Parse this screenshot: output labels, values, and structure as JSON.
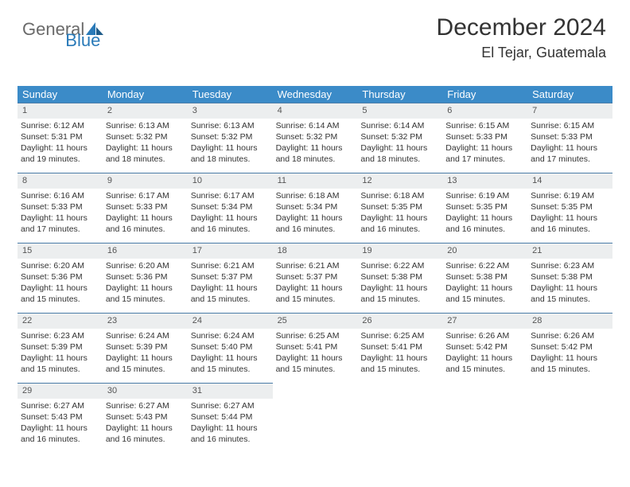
{
  "logo": {
    "part1": "General",
    "part2": "Blue"
  },
  "header": {
    "title": "December 2024",
    "location": "El Tejar, Guatemala"
  },
  "colors": {
    "dow_bg": "#3b8bc8",
    "dow_fg": "#ffffff",
    "cell_border": "#4a7ca8",
    "daynum_bg": "#eceeef",
    "text": "#333333",
    "logo_gray": "#6a6a6a",
    "logo_blue": "#2a7ab8"
  },
  "dow": [
    "Sunday",
    "Monday",
    "Tuesday",
    "Wednesday",
    "Thursday",
    "Friday",
    "Saturday"
  ],
  "days": [
    {
      "n": "1",
      "sr": "Sunrise: 6:12 AM",
      "ss": "Sunset: 5:31 PM",
      "d1": "Daylight: 11 hours",
      "d2": "and 19 minutes."
    },
    {
      "n": "2",
      "sr": "Sunrise: 6:13 AM",
      "ss": "Sunset: 5:32 PM",
      "d1": "Daylight: 11 hours",
      "d2": "and 18 minutes."
    },
    {
      "n": "3",
      "sr": "Sunrise: 6:13 AM",
      "ss": "Sunset: 5:32 PM",
      "d1": "Daylight: 11 hours",
      "d2": "and 18 minutes."
    },
    {
      "n": "4",
      "sr": "Sunrise: 6:14 AM",
      "ss": "Sunset: 5:32 PM",
      "d1": "Daylight: 11 hours",
      "d2": "and 18 minutes."
    },
    {
      "n": "5",
      "sr": "Sunrise: 6:14 AM",
      "ss": "Sunset: 5:32 PM",
      "d1": "Daylight: 11 hours",
      "d2": "and 18 minutes."
    },
    {
      "n": "6",
      "sr": "Sunrise: 6:15 AM",
      "ss": "Sunset: 5:33 PM",
      "d1": "Daylight: 11 hours",
      "d2": "and 17 minutes."
    },
    {
      "n": "7",
      "sr": "Sunrise: 6:15 AM",
      "ss": "Sunset: 5:33 PM",
      "d1": "Daylight: 11 hours",
      "d2": "and 17 minutes."
    },
    {
      "n": "8",
      "sr": "Sunrise: 6:16 AM",
      "ss": "Sunset: 5:33 PM",
      "d1": "Daylight: 11 hours",
      "d2": "and 17 minutes."
    },
    {
      "n": "9",
      "sr": "Sunrise: 6:17 AM",
      "ss": "Sunset: 5:33 PM",
      "d1": "Daylight: 11 hours",
      "d2": "and 16 minutes."
    },
    {
      "n": "10",
      "sr": "Sunrise: 6:17 AM",
      "ss": "Sunset: 5:34 PM",
      "d1": "Daylight: 11 hours",
      "d2": "and 16 minutes."
    },
    {
      "n": "11",
      "sr": "Sunrise: 6:18 AM",
      "ss": "Sunset: 5:34 PM",
      "d1": "Daylight: 11 hours",
      "d2": "and 16 minutes."
    },
    {
      "n": "12",
      "sr": "Sunrise: 6:18 AM",
      "ss": "Sunset: 5:35 PM",
      "d1": "Daylight: 11 hours",
      "d2": "and 16 minutes."
    },
    {
      "n": "13",
      "sr": "Sunrise: 6:19 AM",
      "ss": "Sunset: 5:35 PM",
      "d1": "Daylight: 11 hours",
      "d2": "and 16 minutes."
    },
    {
      "n": "14",
      "sr": "Sunrise: 6:19 AM",
      "ss": "Sunset: 5:35 PM",
      "d1": "Daylight: 11 hours",
      "d2": "and 16 minutes."
    },
    {
      "n": "15",
      "sr": "Sunrise: 6:20 AM",
      "ss": "Sunset: 5:36 PM",
      "d1": "Daylight: 11 hours",
      "d2": "and 15 minutes."
    },
    {
      "n": "16",
      "sr": "Sunrise: 6:20 AM",
      "ss": "Sunset: 5:36 PM",
      "d1": "Daylight: 11 hours",
      "d2": "and 15 minutes."
    },
    {
      "n": "17",
      "sr": "Sunrise: 6:21 AM",
      "ss": "Sunset: 5:37 PM",
      "d1": "Daylight: 11 hours",
      "d2": "and 15 minutes."
    },
    {
      "n": "18",
      "sr": "Sunrise: 6:21 AM",
      "ss": "Sunset: 5:37 PM",
      "d1": "Daylight: 11 hours",
      "d2": "and 15 minutes."
    },
    {
      "n": "19",
      "sr": "Sunrise: 6:22 AM",
      "ss": "Sunset: 5:38 PM",
      "d1": "Daylight: 11 hours",
      "d2": "and 15 minutes."
    },
    {
      "n": "20",
      "sr": "Sunrise: 6:22 AM",
      "ss": "Sunset: 5:38 PM",
      "d1": "Daylight: 11 hours",
      "d2": "and 15 minutes."
    },
    {
      "n": "21",
      "sr": "Sunrise: 6:23 AM",
      "ss": "Sunset: 5:38 PM",
      "d1": "Daylight: 11 hours",
      "d2": "and 15 minutes."
    },
    {
      "n": "22",
      "sr": "Sunrise: 6:23 AM",
      "ss": "Sunset: 5:39 PM",
      "d1": "Daylight: 11 hours",
      "d2": "and 15 minutes."
    },
    {
      "n": "23",
      "sr": "Sunrise: 6:24 AM",
      "ss": "Sunset: 5:39 PM",
      "d1": "Daylight: 11 hours",
      "d2": "and 15 minutes."
    },
    {
      "n": "24",
      "sr": "Sunrise: 6:24 AM",
      "ss": "Sunset: 5:40 PM",
      "d1": "Daylight: 11 hours",
      "d2": "and 15 minutes."
    },
    {
      "n": "25",
      "sr": "Sunrise: 6:25 AM",
      "ss": "Sunset: 5:41 PM",
      "d1": "Daylight: 11 hours",
      "d2": "and 15 minutes."
    },
    {
      "n": "26",
      "sr": "Sunrise: 6:25 AM",
      "ss": "Sunset: 5:41 PM",
      "d1": "Daylight: 11 hours",
      "d2": "and 15 minutes."
    },
    {
      "n": "27",
      "sr": "Sunrise: 6:26 AM",
      "ss": "Sunset: 5:42 PM",
      "d1": "Daylight: 11 hours",
      "d2": "and 15 minutes."
    },
    {
      "n": "28",
      "sr": "Sunrise: 6:26 AM",
      "ss": "Sunset: 5:42 PM",
      "d1": "Daylight: 11 hours",
      "d2": "and 15 minutes."
    },
    {
      "n": "29",
      "sr": "Sunrise: 6:27 AM",
      "ss": "Sunset: 5:43 PM",
      "d1": "Daylight: 11 hours",
      "d2": "and 16 minutes."
    },
    {
      "n": "30",
      "sr": "Sunrise: 6:27 AM",
      "ss": "Sunset: 5:43 PM",
      "d1": "Daylight: 11 hours",
      "d2": "and 16 minutes."
    },
    {
      "n": "31",
      "sr": "Sunrise: 6:27 AM",
      "ss": "Sunset: 5:44 PM",
      "d1": "Daylight: 11 hours",
      "d2": "and 16 minutes."
    }
  ]
}
